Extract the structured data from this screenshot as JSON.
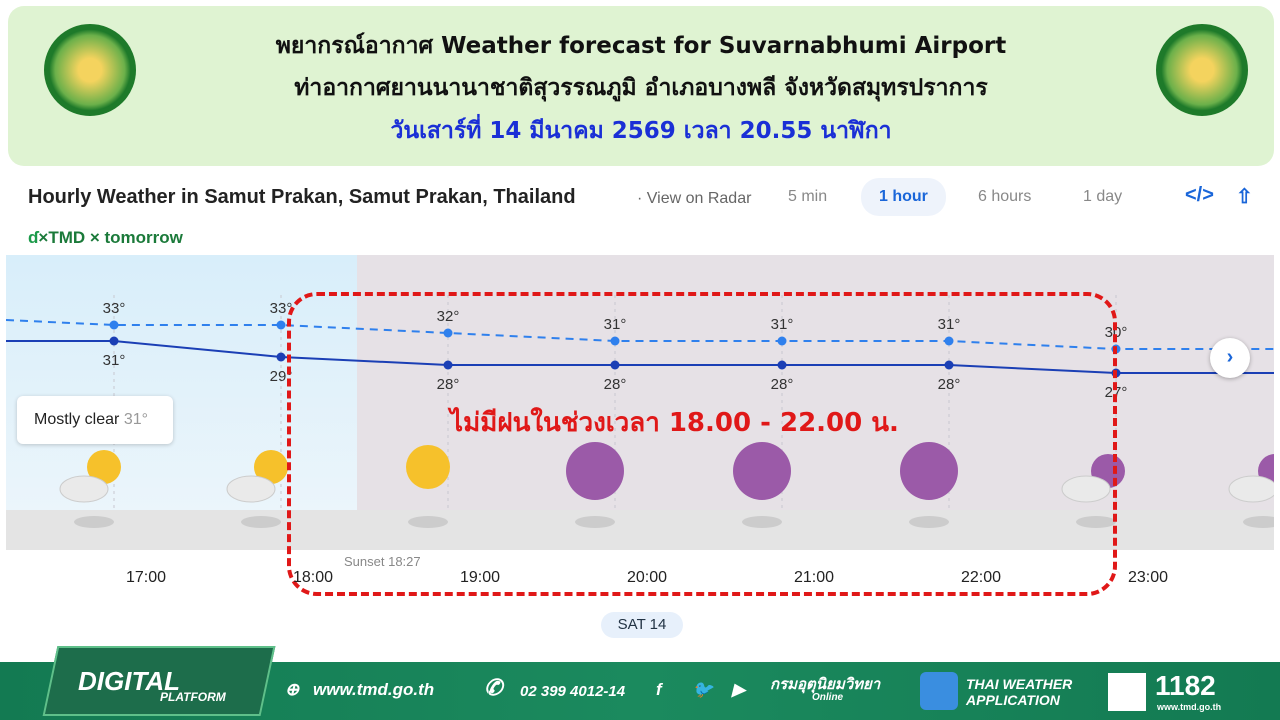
{
  "header": {
    "line1": "พยากรณ์อากาศ Weather forecast for Suvarnabhumi Airport",
    "line2": "ท่าอากาศยานนานาชาติสุวรรณภูมิ อำเภอบางพลี จังหวัดสมุทรปราการ",
    "line3": "วันเสาร์ที่ 14 มีนาคม 2569 เวลา 20.55 นาฬิกา"
  },
  "widget": {
    "title": "Hourly Weather in Samut Prakan, Samut Prakan, Thailand",
    "radar": "· View on Radar",
    "tabs": [
      "5 min",
      "1 hour",
      "6 hours",
      "1 day"
    ],
    "active_tab": "1 hour",
    "brand": "×TMD × tomorrow",
    "tooltip_label": "Mostly clear",
    "tooltip_temp": "31°",
    "sunset": "Sunset 18:27",
    "day": "SAT 14"
  },
  "chart_data": {
    "type": "line",
    "categories": [
      "17:00",
      "18:00",
      "19:00",
      "20:00",
      "21:00",
      "22:00",
      "23:00"
    ],
    "series": [
      {
        "values": [
          33,
          33,
          32,
          31,
          31,
          31,
          30
        ],
        "style": "dashed",
        "color": "#2f80ed"
      },
      {
        "values": [
          31,
          29,
          28,
          28,
          28,
          28,
          27
        ],
        "style": "solid",
        "color": "#1b3fb5"
      }
    ],
    "icons": [
      "partly-cloudy-day",
      "partly-cloudy-day",
      "sunny",
      "clear-night",
      "clear-night",
      "clear-night",
      "partly-cloudy-night",
      "partly-cloudy-night"
    ]
  },
  "annotation": "ไม่มีฝนในช่วงเวลา 18.00 - 22.00 น.",
  "footer": {
    "platform": "DIGITAL",
    "platform_sub": "PLATFORM",
    "website": "www.tmd.go.th",
    "phone": "02 399 4012-14",
    "org": "กรมอุตุนิยมวิทยา",
    "org_sub": "Online",
    "app": "THAI WEATHER",
    "app2": "APPLICATION",
    "hotline": "1182",
    "hotline_sub": "www.tmd.go.th"
  }
}
